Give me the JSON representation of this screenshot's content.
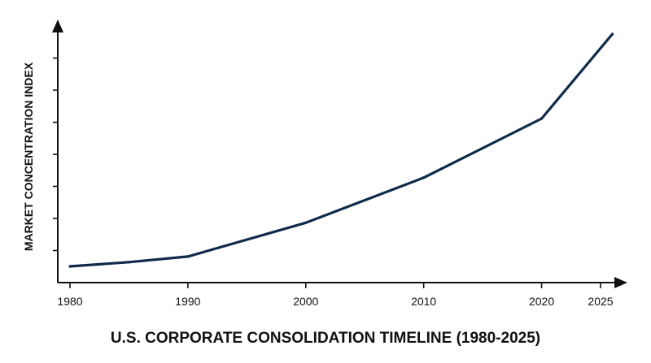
{
  "chart_data": {
    "type": "line",
    "xlabel": "U.S. CORPORATE CONSOLIDATION TIMELINE (1980-2025)",
    "ylabel": "MARKET CONCENTRATION INDEX",
    "x_ticks": [
      "1980",
      "1990",
      "2000",
      "2010",
      "2020",
      "2025"
    ],
    "xlim": [
      1980,
      2025
    ],
    "ylim": [
      0,
      8
    ],
    "y_ticks_labeled": false,
    "grid": false,
    "legend": "none",
    "line_color": "#0f2a4a",
    "series": [
      {
        "x": [
          1980,
          1985,
          1990,
          2000,
          2010,
          2020,
          2026
        ],
        "y": [
          0.5,
          0.65,
          0.85,
          2.05,
          3.65,
          5.75,
          8.75
        ]
      }
    ]
  }
}
